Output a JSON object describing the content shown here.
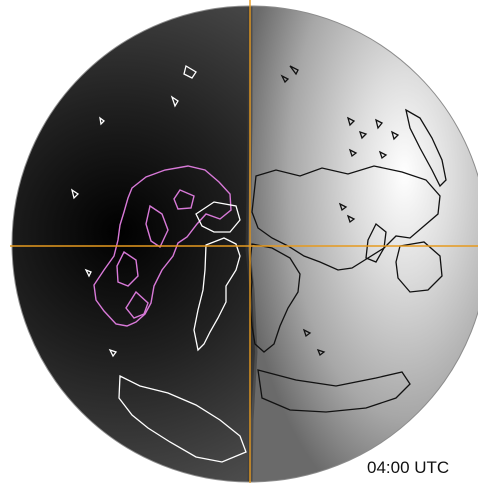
{
  "time_label": "04:00 UTC",
  "colors": {
    "background": "#ffffff",
    "crosshair": "#e69a1f",
    "night_coast": "#ffffff",
    "day_coast": "#111111",
    "americas_coast": "#d879d8"
  },
  "icons": {
    "globe": "globe-icon",
    "crosshair": "crosshair-icon"
  }
}
